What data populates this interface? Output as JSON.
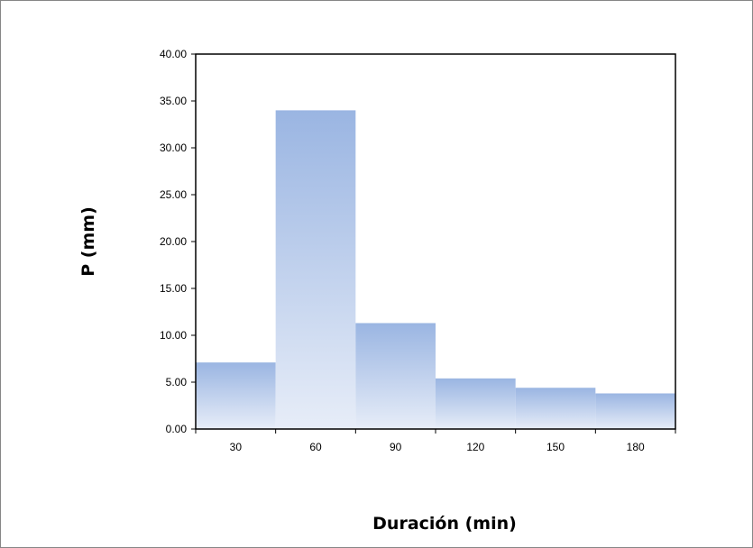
{
  "chart_data": {
    "type": "bar",
    "categories": [
      "30",
      "60",
      "90",
      "120",
      "150",
      "180"
    ],
    "values": [
      7.1,
      34.0,
      11.3,
      5.4,
      4.4,
      3.8
    ],
    "yticks": [
      "0.00",
      "5.00",
      "10.00",
      "15.00",
      "20.00",
      "25.00",
      "30.00",
      "35.00",
      "40.00"
    ],
    "ylim": [
      0,
      40
    ],
    "title": "",
    "xlabel": "Duración (min)",
    "ylabel": "P (mm)",
    "grid": false,
    "legend": "none",
    "bar_gradient": {
      "top": "#9ab5e2",
      "bottom": "#e7edf8"
    },
    "axis_color": "#000000"
  }
}
